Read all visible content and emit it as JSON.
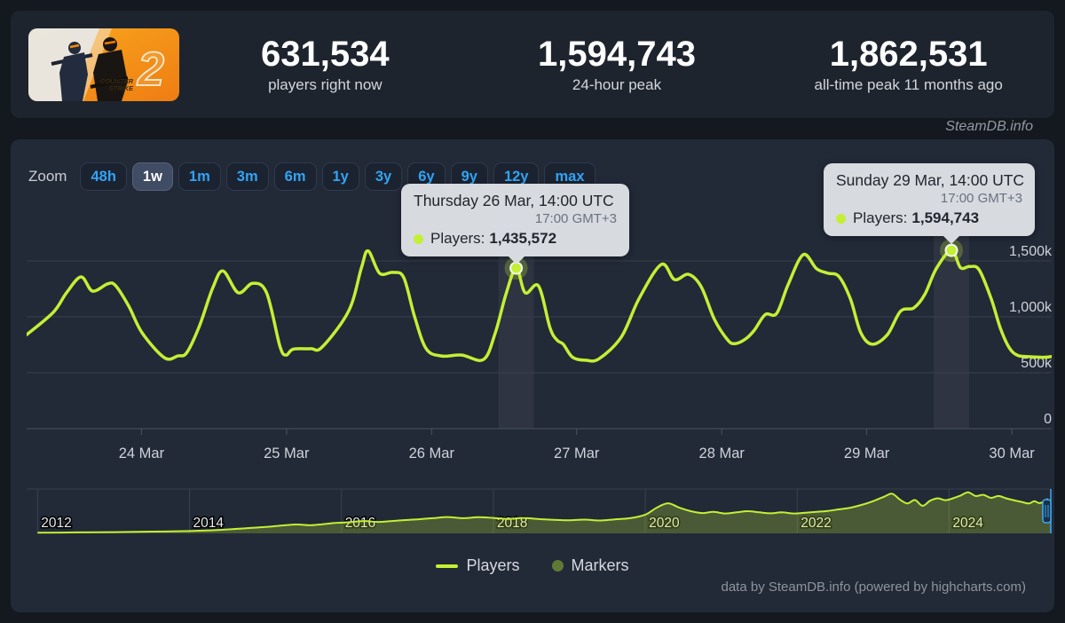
{
  "header": {
    "capsule": {
      "number_glyph": "2",
      "logo_line1": "COUNTER",
      "logo_line2": "STRIKE"
    },
    "stats": [
      {
        "value": "631,534",
        "label": "players right now"
      },
      {
        "value": "1,594,743",
        "label": "24-hour peak"
      },
      {
        "value": "1,862,531",
        "label": "all-time peak 11 months ago"
      }
    ]
  },
  "watermark": "SteamDB.info",
  "toolbar": {
    "zoom_label": "Zoom",
    "ranges": [
      {
        "label": "48h",
        "selected": false
      },
      {
        "label": "1w",
        "selected": true
      },
      {
        "label": "1m",
        "selected": false
      },
      {
        "label": "3m",
        "selected": false
      },
      {
        "label": "6m",
        "selected": false
      },
      {
        "label": "1y",
        "selected": false
      },
      {
        "label": "3y",
        "selected": false
      },
      {
        "label": "6y",
        "selected": false
      },
      {
        "label": "9y",
        "selected": false
      },
      {
        "label": "12y",
        "selected": false
      },
      {
        "label": "max",
        "selected": false
      }
    ]
  },
  "tooltips": [
    {
      "title": "Thursday 26 Mar, 14:00 UTC",
      "local_time": "17:00 GMT+3",
      "series_label": "Players:",
      "value": "1,435,572"
    },
    {
      "title": "Sunday 29 Mar, 14:00 UTC",
      "local_time": "17:00 GMT+3",
      "series_label": "Players:",
      "value": "1,594,743"
    }
  ],
  "legend": {
    "players": "Players",
    "markers": "Markers"
  },
  "footer": "data by SteamDB.info (powered by highcharts.com)",
  "colors": {
    "line": "#c3ef35",
    "line_fill": "rgba(195,239,53,0.25)",
    "marker_legend": "#5f7a35",
    "accent_blue": "#32a3f5",
    "gridline": "#3a414e",
    "axis_line": "#4a5260",
    "axis_label": "#cfd3d9",
    "crosshair_band": "rgba(255,255,255,0.055)",
    "navigator_handle": "#3fa9f0",
    "page_bg": "#14181f",
    "panel_bg": "#222937"
  },
  "chart_data": {
    "type": "line",
    "series_name": "Players",
    "x_unit": "hours since 23 Mar 00:00 UTC",
    "y_unit": "concurrent players (thousands)",
    "x_range": [
      5,
      174.6
    ],
    "ylim": [
      0,
      2000
    ],
    "grid": true,
    "legend_position": "bottom-center",
    "y_ticks": [
      {
        "value": 0,
        "label": "0"
      },
      {
        "value": 500,
        "label": "500k"
      },
      {
        "value": 1000,
        "label": "1,000k"
      },
      {
        "value": 1500,
        "label": "1,500k"
      }
    ],
    "x_ticks": [
      {
        "hour": 24,
        "label": "24 Mar"
      },
      {
        "hour": 48,
        "label": "25 Mar"
      },
      {
        "hour": 72,
        "label": "26 Mar"
      },
      {
        "hour": 96,
        "label": "27 Mar"
      },
      {
        "hour": 120,
        "label": "28 Mar"
      },
      {
        "hour": 144,
        "label": "29 Mar"
      },
      {
        "hour": 168,
        "label": "30 Mar"
      }
    ],
    "points": [
      [
        5,
        840
      ],
      [
        9.4,
        1040
      ],
      [
        11.6,
        1215
      ],
      [
        14,
        1357
      ],
      [
        15.9,
        1230
      ],
      [
        18.4,
        1295
      ],
      [
        19.7,
        1280
      ],
      [
        21.9,
        1095
      ],
      [
        24.1,
        857
      ],
      [
        27.8,
        634
      ],
      [
        30,
        650
      ],
      [
        31.5,
        680
      ],
      [
        33.6,
        920
      ],
      [
        35.8,
        1260
      ],
      [
        37.5,
        1410
      ],
      [
        40,
        1215
      ],
      [
        42.4,
        1300
      ],
      [
        44.7,
        1215
      ],
      [
        46.9,
        740
      ],
      [
        47.9,
        658
      ],
      [
        49.1,
        710
      ],
      [
        52,
        715
      ],
      [
        53.9,
        730
      ],
      [
        58.3,
        1055
      ],
      [
        60.4,
        1440
      ],
      [
        61.5,
        1590
      ],
      [
        63.4,
        1390
      ],
      [
        65.6,
        1398
      ],
      [
        67.4,
        1350
      ],
      [
        69.2,
        1000
      ],
      [
        71.1,
        715
      ],
      [
        73.6,
        650
      ],
      [
        77,
        658
      ],
      [
        80.6,
        618
      ],
      [
        82.5,
        850
      ],
      [
        84.3,
        1200
      ],
      [
        86,
        1435.6
      ],
      [
        87.5,
        1215
      ],
      [
        89.7,
        1275
      ],
      [
        91.6,
        900
      ],
      [
        92.8,
        790
      ],
      [
        93.8,
        755
      ],
      [
        95.3,
        640
      ],
      [
        97.5,
        612
      ],
      [
        99.7,
        625
      ],
      [
        103.4,
        820
      ],
      [
        106.3,
        1160
      ],
      [
        110,
        1468
      ],
      [
        112.2,
        1333
      ],
      [
        114.5,
        1380
      ],
      [
        116.6,
        1270
      ],
      [
        118.8,
        977
      ],
      [
        121,
        793
      ],
      [
        122.2,
        760
      ],
      [
        123.9,
        800
      ],
      [
        125.4,
        880
      ],
      [
        127.2,
        1020
      ],
      [
        129.1,
        1030
      ],
      [
        131,
        1290
      ],
      [
        133.5,
        1556
      ],
      [
        135.7,
        1430
      ],
      [
        137.6,
        1390
      ],
      [
        139.4,
        1360
      ],
      [
        141.3,
        1160
      ],
      [
        143,
        860
      ],
      [
        144.9,
        755
      ],
      [
        147.4,
        840
      ],
      [
        149.6,
        1050
      ],
      [
        151.8,
        1080
      ],
      [
        153.6,
        1200
      ],
      [
        155.5,
        1430
      ],
      [
        158,
        1594.7
      ],
      [
        159.5,
        1440
      ],
      [
        161,
        1450
      ],
      [
        162.6,
        1420
      ],
      [
        164.6,
        1160
      ],
      [
        166.1,
        900
      ],
      [
        167.6,
        722
      ],
      [
        169,
        655
      ],
      [
        171,
        643
      ],
      [
        173.2,
        638
      ],
      [
        174.6,
        645
      ]
    ],
    "markers": [
      {
        "hour": 86,
        "players": 1435.572
      },
      {
        "hour": 158,
        "players": 1594.743
      }
    ],
    "navigator": {
      "type": "area",
      "x_unit": "year",
      "x_range": [
        2011.95,
        2025.35
      ],
      "ylim": [
        0,
        1900
      ],
      "x_ticks": [
        2012,
        2014,
        2016,
        2018,
        2020,
        2022,
        2024
      ],
      "points": [
        [
          2012,
          30
        ],
        [
          2012.5,
          40
        ],
        [
          2013,
          55
        ],
        [
          2013.5,
          75
        ],
        [
          2014,
          100
        ],
        [
          2014.4,
          150
        ],
        [
          2014.8,
          230
        ],
        [
          2015.1,
          300
        ],
        [
          2015.4,
          380
        ],
        [
          2015.6,
          350
        ],
        [
          2015.9,
          440
        ],
        [
          2016.1,
          480
        ],
        [
          2016.3,
          530
        ],
        [
          2016.5,
          490
        ],
        [
          2016.8,
          560
        ],
        [
          2017,
          600
        ],
        [
          2017.2,
          650
        ],
        [
          2017.4,
          700
        ],
        [
          2017.6,
          650
        ],
        [
          2017.8,
          690
        ],
        [
          2018,
          660
        ],
        [
          2018.2,
          620
        ],
        [
          2018.4,
          660
        ],
        [
          2018.6,
          610
        ],
        [
          2018.8,
          580
        ],
        [
          2019,
          560
        ],
        [
          2019.2,
          590
        ],
        [
          2019.4,
          550
        ],
        [
          2019.6,
          600
        ],
        [
          2019.8,
          650
        ],
        [
          2020,
          800
        ],
        [
          2020.15,
          1100
        ],
        [
          2020.3,
          1290
        ],
        [
          2020.45,
          1100
        ],
        [
          2020.6,
          950
        ],
        [
          2020.75,
          870
        ],
        [
          2020.9,
          920
        ],
        [
          2021.05,
          850
        ],
        [
          2021.2,
          900
        ],
        [
          2021.35,
          950
        ],
        [
          2021.5,
          900
        ],
        [
          2021.65,
          860
        ],
        [
          2021.8,
          900
        ],
        [
          2021.95,
          850
        ],
        [
          2022.1,
          880
        ],
        [
          2022.25,
          920
        ],
        [
          2022.4,
          960
        ],
        [
          2022.55,
          1030
        ],
        [
          2022.7,
          1100
        ],
        [
          2022.85,
          1220
        ],
        [
          2023,
          1380
        ],
        [
          2023.15,
          1580
        ],
        [
          2023.25,
          1700
        ],
        [
          2023.35,
          1450
        ],
        [
          2023.45,
          1280
        ],
        [
          2023.55,
          1430
        ],
        [
          2023.65,
          1180
        ],
        [
          2023.75,
          1400
        ],
        [
          2023.85,
          1500
        ],
        [
          2023.95,
          1420
        ],
        [
          2024.05,
          1500
        ],
        [
          2024.15,
          1620
        ],
        [
          2024.25,
          1760
        ],
        [
          2024.35,
          1600
        ],
        [
          2024.45,
          1650
        ],
        [
          2024.55,
          1520
        ],
        [
          2024.65,
          1600
        ],
        [
          2024.75,
          1500
        ],
        [
          2024.85,
          1420
        ],
        [
          2024.95,
          1350
        ],
        [
          2025.05,
          1280
        ],
        [
          2025.12,
          1380
        ],
        [
          2025.18,
          1300
        ],
        [
          2025.24,
          1340
        ],
        [
          2025.3,
          1480
        ]
      ]
    }
  }
}
